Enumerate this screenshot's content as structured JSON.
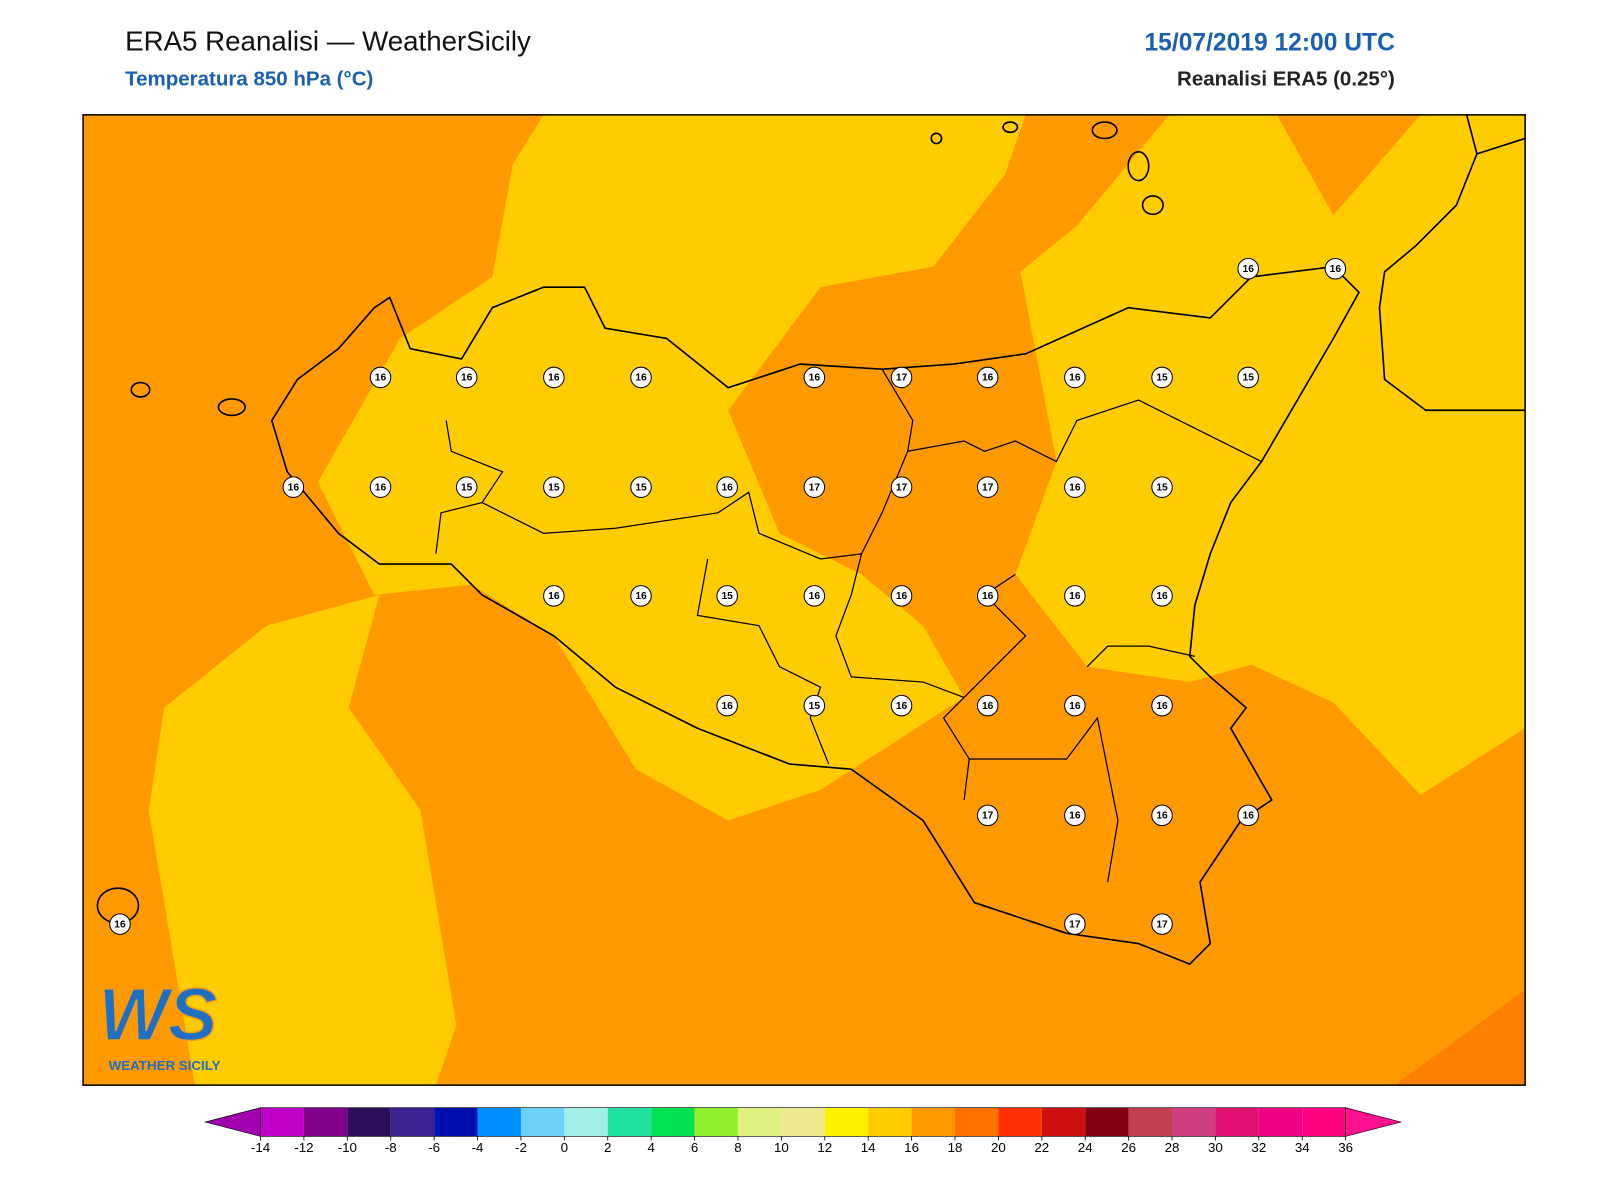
{
  "header": {
    "title": "ERA5 Reanalisi — WeatherSicily",
    "subtitle": "Temperatura 850 hPa (°C)",
    "date": "15/07/2019 12:00 UTC",
    "source": "Reanalisi ERA5 (0.25°)"
  },
  "map": {
    "fill_colors": {
      "warm": "#ff9900",
      "mild": "#ffcc00",
      "hot": "#ff7f00"
    },
    "labels": [
      16,
      16,
      16,
      16,
      16,
      16,
      16,
      17,
      16,
      16,
      15,
      15,
      16,
      16,
      15,
      15,
      15,
      16,
      17,
      17,
      17,
      16,
      15,
      16,
      16,
      15,
      16,
      16,
      16,
      16,
      16,
      16,
      15,
      16,
      16,
      16,
      16,
      17,
      16,
      16,
      16,
      16,
      17,
      17
    ]
  },
  "logo": {
    "mark": "WS",
    "name": "WEATHER SICILY"
  },
  "colorbar": {
    "ticks": [
      -14,
      -12,
      -10,
      -8,
      -6,
      -4,
      -2,
      0,
      2,
      4,
      6,
      8,
      10,
      12,
      14,
      16,
      18,
      20,
      22,
      24,
      26,
      28,
      30,
      32,
      34,
      36
    ],
    "colors": [
      "#a000b0",
      "#c000c8",
      "#80008c",
      "#2e0e5a",
      "#3c2090",
      "#0010b0",
      "#0090ff",
      "#6cd0f8",
      "#a0f0e8",
      "#20e0a0",
      "#00e050",
      "#90f030",
      "#e0f080",
      "#f0e890",
      "#fff000",
      "#ffcc00",
      "#ff9900",
      "#ff7000",
      "#ff3000",
      "#cc1010",
      "#800010",
      "#c04050",
      "#d04080",
      "#e01070",
      "#f00080",
      "#ff0080",
      "#ff1090"
    ]
  }
}
